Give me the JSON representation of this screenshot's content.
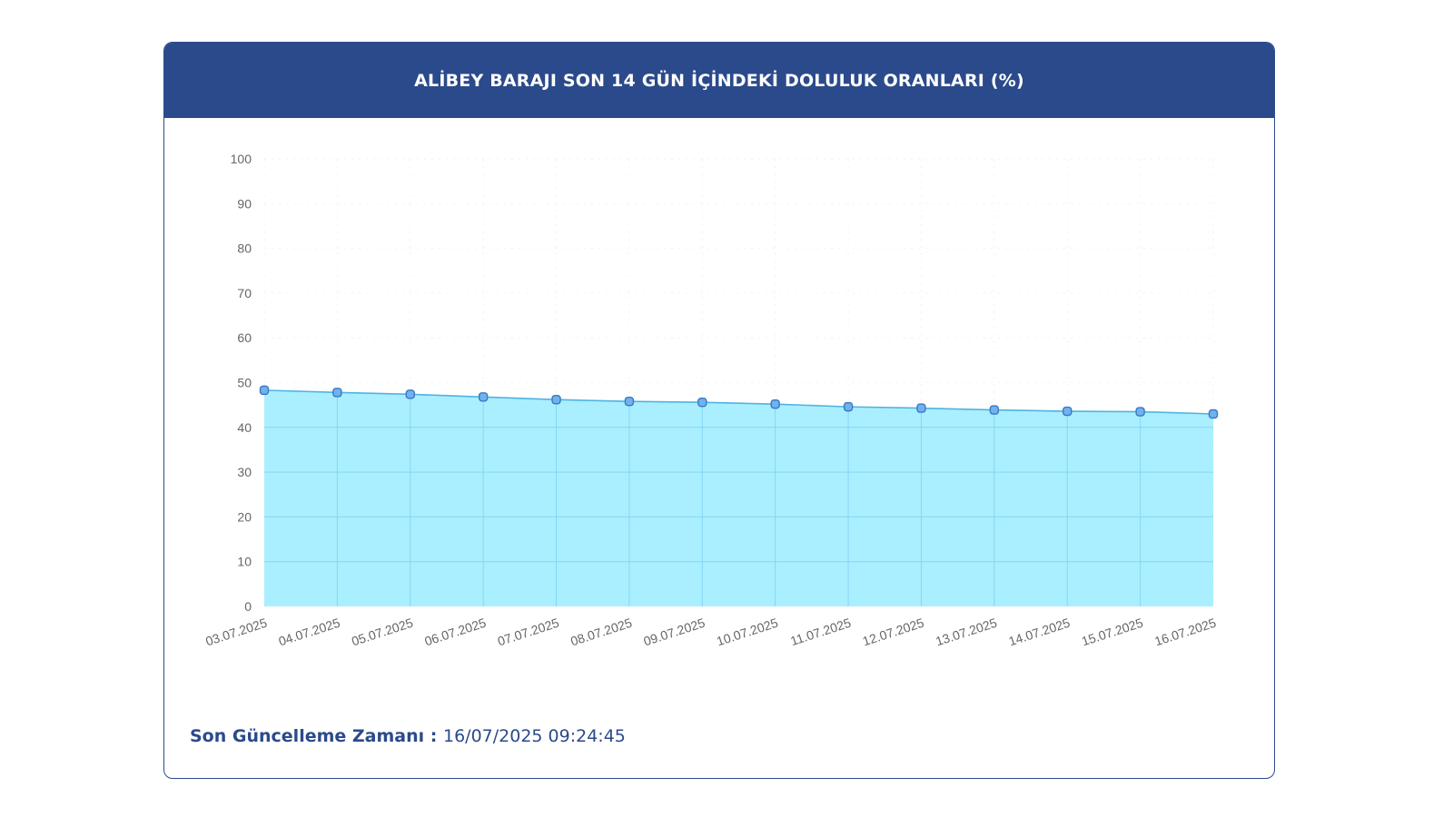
{
  "header": {
    "title": "ALİBEY BARAJI SON 14 GÜN İÇİNDEKİ DOLULUK ORANLARI (%)"
  },
  "footer": {
    "label": "Son Güncelleme Zamanı",
    "separator": " : ",
    "value": "16/07/2025 09:24:45"
  },
  "colors": {
    "header_bg": "#2b4a8b",
    "area_fill": "#aaefff",
    "line": "#4fb3e3",
    "marker": "#3a78c2"
  },
  "chart_data": {
    "type": "area",
    "title": "ALİBEY BARAJI SON 14 GÜN İÇİNDEKİ DOLULUK ORANLARI (%)",
    "xlabel": "",
    "ylabel": "",
    "ylim": [
      0,
      100
    ],
    "yticks": [
      "0",
      "10",
      "20",
      "30",
      "40",
      "50",
      "60",
      "70",
      "80",
      "90",
      "100"
    ],
    "categories": [
      "03.07.2025",
      "04.07.2025",
      "05.07.2025",
      "06.07.2025",
      "07.07.2025",
      "08.07.2025",
      "09.07.2025",
      "10.07.2025",
      "11.07.2025",
      "12.07.2025",
      "13.07.2025",
      "14.07.2025",
      "15.07.2025",
      "16.07.2025"
    ],
    "series": [
      {
        "values": [
          48.3,
          47.8,
          47.4,
          46.8,
          46.2,
          45.8,
          45.6,
          45.2,
          44.6,
          44.3,
          43.9,
          43.6,
          43.5,
          43.0
        ]
      }
    ],
    "grid": true,
    "legend": "none"
  }
}
